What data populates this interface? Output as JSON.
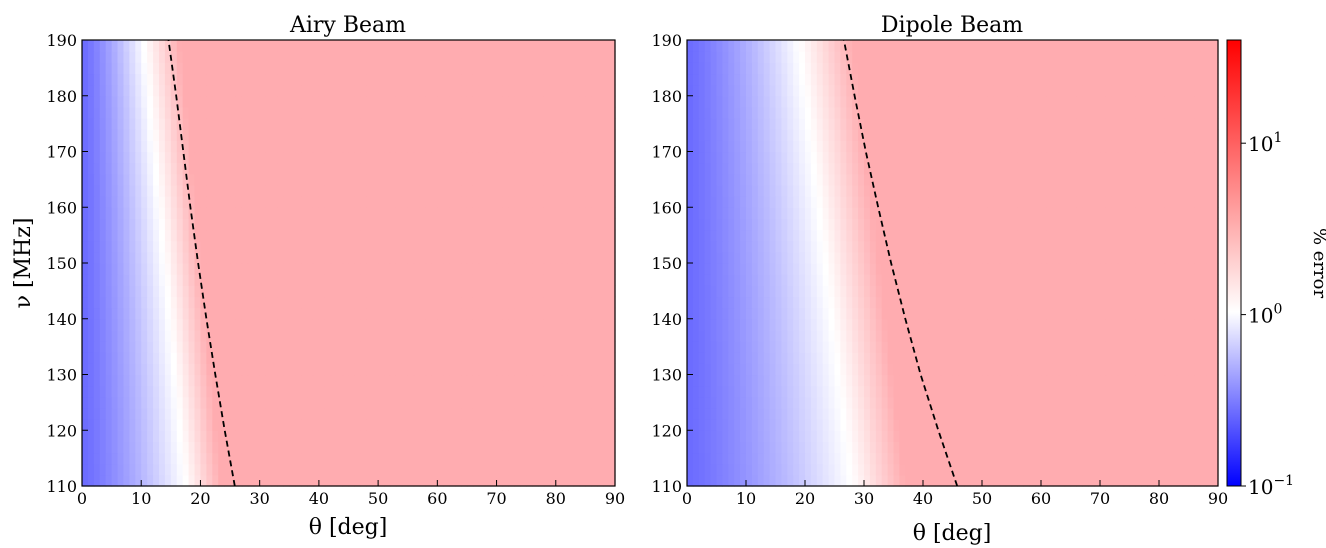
{
  "chart_data": [
    {
      "type": "heatmap",
      "title": "Airy Beam",
      "xlabel": "θ [deg]",
      "ylabel": "ν [MHz]",
      "xlim": [
        0,
        90
      ],
      "ylim": [
        110,
        190
      ],
      "xticks": [
        0,
        10,
        20,
        30,
        40,
        50,
        60,
        70,
        80,
        90
      ],
      "yticks": [
        110,
        120,
        130,
        140,
        150,
        160,
        170,
        180,
        190
      ],
      "xtick_labels": [
        "0",
        "10",
        "20",
        "30",
        "40",
        "50",
        "60",
        "70",
        "80",
        "90"
      ],
      "ytick_labels": [
        "110",
        "120",
        "130",
        "140",
        "150",
        "160",
        "170",
        "180",
        "190"
      ],
      "transition_theta_at_110": 17.5,
      "transition_theta_at_190": 10.5,
      "transition_width_deg": 6,
      "dashed_curve": {
        "nu": [
          110,
          120,
          130,
          140,
          150,
          160,
          170,
          180,
          190
        ],
        "theta": [
          25.8,
          24.1,
          22.5,
          21.0,
          19.6,
          18.3,
          17.1,
          15.9,
          14.6
        ]
      }
    },
    {
      "type": "heatmap",
      "title": "Dipole Beam",
      "xlabel": "θ [deg]",
      "ylabel": "",
      "xlim": [
        0,
        90
      ],
      "ylim": [
        110,
        190
      ],
      "xticks": [
        0,
        10,
        20,
        30,
        40,
        50,
        60,
        70,
        80,
        90
      ],
      "yticks": [
        110,
        120,
        130,
        140,
        150,
        160,
        170,
        180,
        190
      ],
      "xtick_labels": [
        "0",
        "10",
        "20",
        "30",
        "40",
        "50",
        "60",
        "70",
        "80",
        "90"
      ],
      "ytick_labels": [
        "110",
        "120",
        "130",
        "140",
        "150",
        "160",
        "170",
        "180",
        "190"
      ],
      "transition_theta_at_110": 28,
      "transition_theta_at_190": 19,
      "transition_width_deg": 9,
      "dashed_curve": {
        "nu": [
          110,
          120,
          130,
          140,
          150,
          160,
          170,
          180,
          190
        ],
        "theta": [
          45.8,
          42.6,
          39.6,
          37.0,
          34.6,
          32.4,
          30.3,
          28.4,
          26.6
        ]
      }
    }
  ],
  "colorbar": {
    "label": "% error",
    "scale": "log",
    "range": [
      0.1,
      40
    ],
    "tick_labels": [
      {
        "base": "10",
        "exp": "−1",
        "value": 0.1
      },
      {
        "base": "10",
        "exp": "0",
        "value": 1
      },
      {
        "base": "10",
        "exp": "1",
        "value": 10
      }
    ],
    "colors": {
      "low": "#0000ff",
      "mid": "#ffffff",
      "high": "#ff0000"
    }
  },
  "colors": {
    "blue_region": "#6b6bff",
    "white_region": "#ffffff",
    "pink_region": "#ffacb0",
    "dashed_line": "#000000"
  }
}
